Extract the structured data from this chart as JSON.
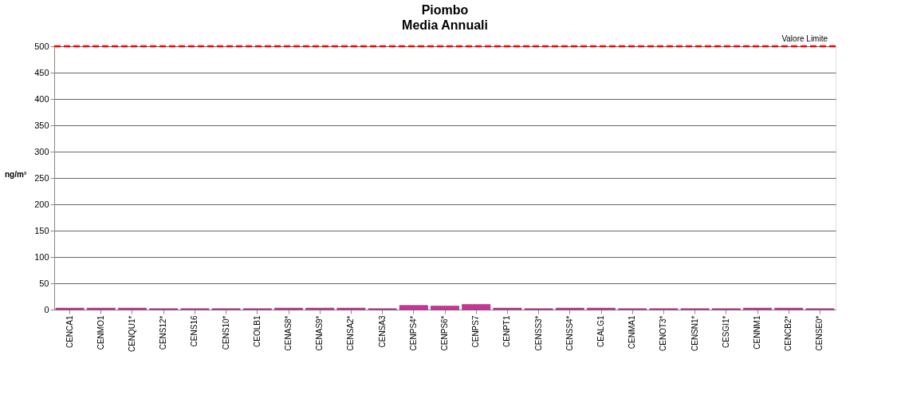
{
  "chart_data": {
    "type": "bar",
    "title": "Piombo",
    "subtitle": "Media Annuali",
    "ylabel": "ng/m³",
    "categories": [
      "CENCA1",
      "CENMO1",
      "CENQU1*",
      "CENS12*",
      "CENS16",
      "CENS10*",
      "CEOLB1",
      "CENAS8*",
      "CENAS9*",
      "CENSA2*",
      "CENSA3",
      "CENPS4*",
      "CENPS6*",
      "CENPS7",
      "CENPT1",
      "CENSS3*",
      "CENSS4*",
      "CEALG1",
      "CENMA1",
      "CENOT3*",
      "CENSN1*",
      "CESGI1*",
      "CENNM1",
      "CENCB2*",
      "CENSE0*"
    ],
    "values": [
      3,
      3,
      3,
      2,
      2,
      2,
      2,
      3,
      3,
      3,
      2,
      8,
      7,
      10,
      3,
      2,
      3,
      3,
      2,
      2,
      2,
      2,
      3,
      3,
      2
    ],
    "color": "#cc3399",
    "ylim": [
      0,
      500
    ],
    "yticks": [
      0,
      50,
      100,
      150,
      200,
      250,
      300,
      350,
      400,
      450,
      500
    ],
    "grid": "y",
    "ref_lines": [
      {
        "axis": "y",
        "value": 500,
        "label": "Valore Limite",
        "color": "#ff0000",
        "line_style": "dashed"
      }
    ]
  }
}
